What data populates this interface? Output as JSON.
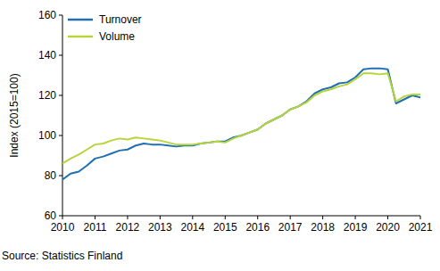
{
  "chart_data": {
    "type": "line",
    "y_label": "Index (2015=100)",
    "source": "Source: Statistics Finland",
    "x": [
      2010,
      2010.25,
      2010.5,
      2010.75,
      2011,
      2011.25,
      2011.5,
      2011.75,
      2012,
      2012.25,
      2012.5,
      2012.75,
      2013,
      2013.25,
      2013.5,
      2013.75,
      2014,
      2014.25,
      2014.5,
      2014.75,
      2015,
      2015.25,
      2015.5,
      2015.75,
      2016,
      2016.25,
      2016.5,
      2016.75,
      2017,
      2017.25,
      2017.5,
      2017.75,
      2018,
      2018.25,
      2018.5,
      2018.75,
      2019,
      2019.25,
      2019.5,
      2019.75,
      2020,
      2020.25,
      2020.5,
      2020.75,
      2021
    ],
    "series": [
      {
        "name": "Turnover",
        "color": "#1f6fb2",
        "values": [
          78,
          81,
          82,
          85,
          88.5,
          89.5,
          91,
          92.5,
          93,
          95,
          96,
          95.5,
          95.5,
          95,
          94.5,
          95,
          95,
          96,
          96.5,
          97,
          97,
          99,
          100,
          101.5,
          103,
          106,
          108,
          110,
          113,
          114.5,
          117,
          121,
          123,
          124,
          126,
          126.5,
          129,
          133,
          133.5,
          133.5,
          133,
          116,
          118,
          120,
          119
        ]
      },
      {
        "name": "Volume",
        "color": "#b5d53a",
        "values": [
          86,
          88.5,
          90.5,
          93,
          95.5,
          96,
          97.5,
          98.5,
          98,
          99,
          98.5,
          98,
          97.5,
          96.5,
          95.5,
          95.5,
          95.5,
          96,
          96.5,
          97,
          96.5,
          98.5,
          100,
          101.5,
          103,
          106,
          108,
          110,
          113,
          114.5,
          116.5,
          120,
          122,
          123,
          124.5,
          125.5,
          128,
          131,
          131,
          130.5,
          131,
          117,
          119.5,
          120.5,
          120.5
        ]
      }
    ],
    "xlim": [
      2010,
      2021
    ],
    "xticks": [
      2010,
      2011,
      2012,
      2013,
      2014,
      2015,
      2016,
      2017,
      2018,
      2019,
      2020,
      2021
    ],
    "ylim": [
      60,
      160
    ],
    "yticks": [
      60,
      80,
      100,
      120,
      140,
      160
    ],
    "grid": false,
    "legend": "upper left"
  }
}
